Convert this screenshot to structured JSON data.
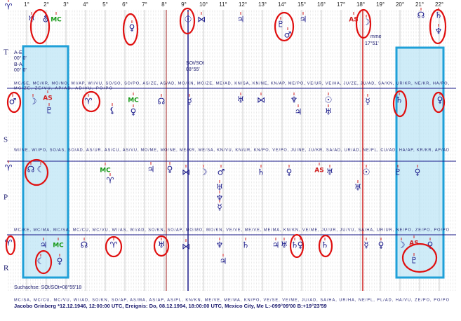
{
  "degrees": [
    "1°",
    "2°",
    "3°",
    "4°",
    "5°",
    "6°",
    "7°",
    "8°",
    "9°",
    "10°",
    "11°",
    "12°",
    "13°",
    "14°",
    "15°",
    "16°",
    "17°",
    "18°",
    "19°",
    "20°",
    "21°",
    "22°"
  ],
  "bands": [
    {
      "label": "T",
      "glyphs": [
        "♈",
        "♅",
        "⛢",
        "MC",
        "♀",
        "☉",
        "⋈",
        "♃",
        "♇",
        "♂",
        "♃",
        "AS",
        "☽",
        "☊",
        "♄",
        "♆"
      ]
    },
    {
      "label": "S",
      "glyphs": [
        "♂",
        "☽",
        "AS",
        "♇",
        "♈",
        "⚸",
        "MC",
        "♀",
        "☊",
        "☿",
        "♅",
        "⋈",
        "♆",
        "♃",
        "☉",
        "♅",
        "☿",
        "♄",
        "♀"
      ]
    },
    {
      "label": "P",
      "glyphs": [
        "♈",
        "☊",
        "☾",
        "MC",
        "♈",
        "♃",
        "♀",
        "⋈",
        "☽",
        "♂",
        "♅",
        "♆",
        "☿",
        "♄",
        "♀",
        "AS",
        "♅",
        "♅",
        "☉",
        "♇",
        "♀"
      ]
    },
    {
      "label": "R",
      "glyphs": [
        "♈",
        "♃",
        "MC",
        "☾",
        "♀",
        "☊",
        "♈",
        "♅",
        "⋈",
        "♆",
        "♄",
        "♃",
        "♃",
        "♅",
        "♄",
        "♀",
        "♄",
        "☿",
        "♀",
        "☽",
        "AS",
        "♇",
        "♀"
      ]
    }
  ],
  "left_info": [
    "A-E",
    "00° 0'",
    "B-A",
    "00° 0'"
  ],
  "axis_note": [
    "SOt/SOt",
    "08°55'"
  ],
  "right_note": [
    "mme",
    "17°51'"
  ],
  "midpoint_rows": [
    "MC/SE, MC/KR, MO/NO, WI/AP, WI/VU, SO/SO, SO/PO, AS/ZE, AS/AD, MO/KN, MO/ZE, ME/AD, KN/SA, KN/NE, KN/AP, ME/PO, VE/UR, VE/HA, JU/ZE, JU/AD, SA/KN, UR/KR, NE/KR, HA/PO,",
    "MC/ZE, ZE/VU, AP/AD, AD/VU, PO/PO",
    "WI/NE, WI/PO, SO/AS, SO/AD, AS/UR, AS/CU, AS/VU, MO/ME, MO/NE, ME/KR, ME/SA, KN/VU, KN/UR, KN/PO, VE/PO, JU/NE, JU/KR, SA/AD, UR/AD, NE/PL, CU/AD, HA/AP, KR/KR, AP/AD",
    "MC/KE, MC/MA, MC/SA, MC/CU, MC/VU, WI/AS, WI/AD, SO/KN, SO/AP, MO/MO, MO/KN, VE/VE, ME/VE, ME/MA, KN/KN, VE/ME, JU/UR, JU/VU, SA/HA, UR/UR, NE/PO, ZE/PO, PO/PO"
  ],
  "search_axis": "Suchachse: SOt/SOt=08°55'18",
  "bottom_rows": [
    "MC/SA, MC/CU, MC/VU, WI/AD, SO/KN, SO/AP, AS/MA, AS/AP, AS/PL, KN/KN, ME/VE, ME/MA, KN/PO, VE/SE, VE/ME, JU/AD, SA/HA, UR/HA, NE/PL, PL/AD, HA/VU, ZE/PO, PO/PO",
    "Jacobo Grinberg   *12.12.1946, 12:00:00 UTC, Ereignis: Do, 08.12.1994, 18:00:00 UTC, Mexico City, Me L:-099°09'00 B:+19°23'59"
  ]
}
